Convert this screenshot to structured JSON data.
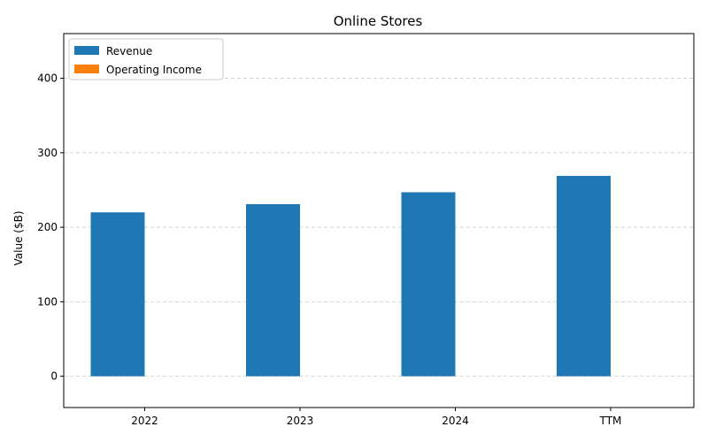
{
  "chart_data": {
    "type": "bar",
    "title": "Online Stores",
    "xlabel": "",
    "ylabel": "Value ($B)",
    "categories": [
      "2022",
      "2023",
      "2024",
      "TTM"
    ],
    "series": [
      {
        "name": "Revenue",
        "values": [
          220,
          231,
          247,
          269
        ],
        "color": "#1f77b4"
      },
      {
        "name": "Operating Income",
        "values": [
          0,
          0,
          0,
          0
        ],
        "color": "#ff7f0e"
      }
    ],
    "ylim": [
      -42,
      460
    ],
    "yticks": [
      0,
      100,
      200,
      300,
      400
    ],
    "grid": {
      "y": true,
      "style": "dashed"
    },
    "legend": {
      "placement": "top-left"
    }
  }
}
